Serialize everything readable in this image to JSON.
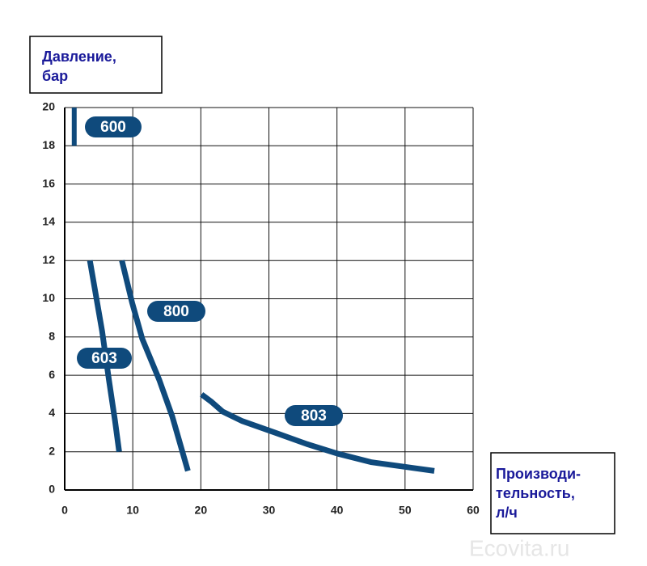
{
  "chart_data": {
    "type": "line",
    "y_label": [
      "Давление,",
      "бар"
    ],
    "x_label": [
      "Производи-",
      "тельность,",
      "л/ч"
    ],
    "watermark": "Ecovita.ru",
    "xlim": [
      0,
      60
    ],
    "xticks": [
      0,
      10,
      20,
      30,
      40,
      50,
      60
    ],
    "ylim": [
      0,
      20
    ],
    "yticks": [
      0,
      2,
      4,
      6,
      8,
      10,
      12,
      14,
      16,
      18,
      20
    ],
    "grid": true,
    "series": [
      {
        "name": "600",
        "color": "#0f4a7c",
        "x": [
          1.4,
          1.4
        ],
        "values": [
          20,
          18
        ]
      },
      {
        "name": "603",
        "color": "#0f4a7c",
        "x": [
          3.7,
          5.5,
          6.5,
          7.4,
          8.0
        ],
        "values": [
          12,
          8.3,
          5.75,
          3.6,
          2.0
        ]
      },
      {
        "name": "800",
        "color": "#0f4a7c",
        "x": [
          8.4,
          9.9,
          11.4,
          13.9,
          15.8,
          18.1
        ],
        "values": [
          12,
          9.8,
          7.9,
          5.75,
          3.85,
          1.0
        ]
      },
      {
        "name": "803",
        "color": "#0f4a7c",
        "x": [
          20.1,
          21.6,
          23.2,
          26.1,
          30.9,
          35.6,
          40.1,
          45.1,
          54.3
        ],
        "values": [
          5.0,
          4.6,
          4.1,
          3.6,
          3.0,
          2.4,
          1.9,
          1.45,
          1.0
        ]
      }
    ]
  }
}
